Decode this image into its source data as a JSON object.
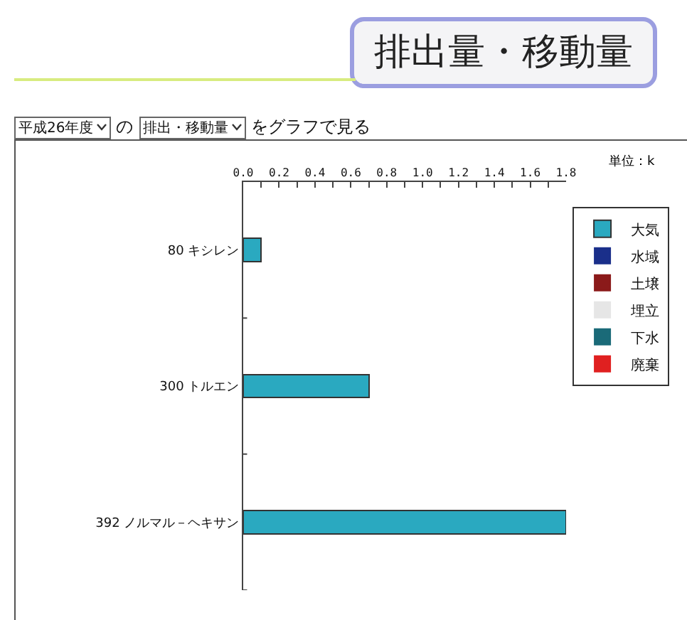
{
  "chart_data": {
    "type": "bar",
    "title": "排出量・移動量",
    "orientation": "horizontal",
    "stacked": true,
    "categories": [
      "80 キシレン",
      "300 トルエン",
      "392 ノルマル－ヘキサン"
    ],
    "series": [
      {
        "name": "大気",
        "color": "#2aa9c0",
        "values": [
          0.1,
          0.7,
          1.8
        ]
      },
      {
        "name": "水域",
        "color": "#1a2f8a",
        "values": [
          0,
          0,
          0
        ]
      },
      {
        "name": "土壌",
        "color": "#8b1a1a",
        "values": [
          0,
          0,
          0
        ]
      },
      {
        "name": "埋立",
        "color": "#e6e6e6",
        "values": [
          0,
          0,
          0
        ]
      },
      {
        "name": "下水",
        "color": "#1a6a78",
        "values": [
          0,
          0,
          0
        ]
      },
      {
        "name": "廃棄",
        "color": "#e02020",
        "values": [
          0,
          0,
          0
        ]
      }
    ],
    "xlim": [
      0,
      1.8
    ],
    "xticks": [
      {
        "value": 0,
        "label": "0.0"
      },
      {
        "value": 0.1,
        "label": null
      },
      {
        "value": 0.2,
        "label": "0.2"
      },
      {
        "value": 0.3,
        "label": null
      },
      {
        "value": 0.4,
        "label": "0.4"
      },
      {
        "value": 0.5,
        "label": null
      },
      {
        "value": 0.6,
        "label": "0.6"
      },
      {
        "value": 0.7,
        "label": null
      },
      {
        "value": 0.8,
        "label": "0.8"
      },
      {
        "value": 0.9,
        "label": null
      },
      {
        "value": 1,
        "label": "1.0"
      },
      {
        "value": 1.1,
        "label": null
      },
      {
        "value": 1.2,
        "label": "1.2"
      },
      {
        "value": 1.3,
        "label": null
      },
      {
        "value": 1.4,
        "label": "1.4"
      },
      {
        "value": 1.5,
        "label": null
      },
      {
        "value": 1.6,
        "label": "1.6"
      },
      {
        "value": 1.7,
        "label": null
      },
      {
        "value": 1.8,
        "label": "1.8"
      }
    ],
    "annotations": [
      "平成26年度",
      "の",
      "排出・移動量",
      "をグラフで見る",
      "単位：k"
    ],
    "grid": false,
    "legend": "right"
  }
}
